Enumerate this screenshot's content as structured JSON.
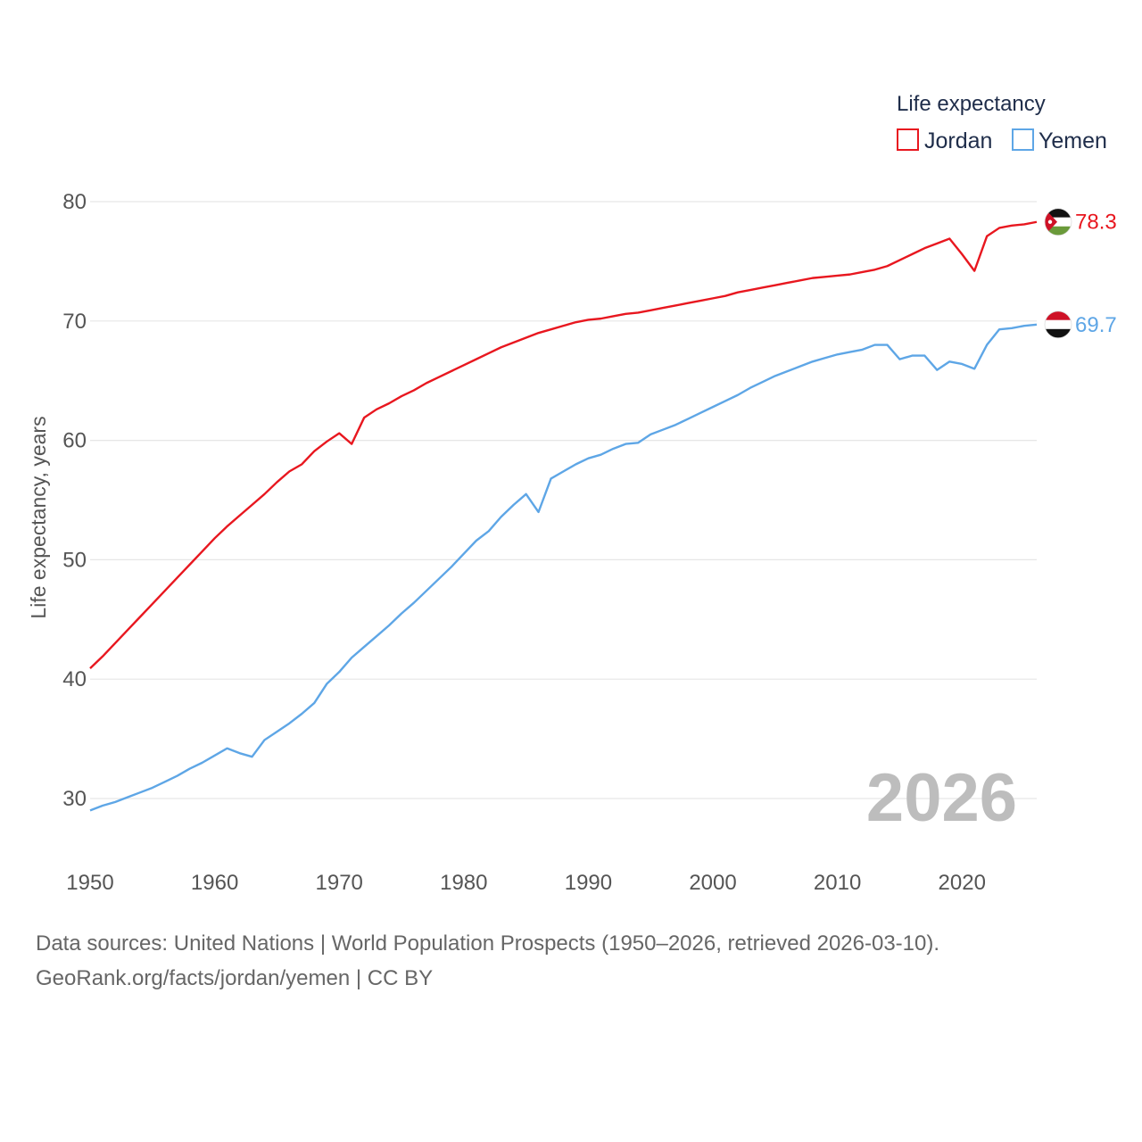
{
  "chart_data": {
    "type": "line",
    "legend_title": "Life expectancy",
    "ylabel": "Life expectancy, years",
    "xlabel": "",
    "xlim": [
      1950,
      2026
    ],
    "ylim": [
      25,
      82
    ],
    "x_ticks": [
      1950,
      1960,
      1970,
      1980,
      1990,
      2000,
      2010,
      2020
    ],
    "y_ticks": [
      30,
      40,
      50,
      60,
      70,
      80
    ],
    "grid": true,
    "legend_position": "top-right",
    "year_label": "2026",
    "series": [
      {
        "name": "Jordan",
        "color": "#e8171f",
        "end_label": "78.3",
        "flag_icon": "jordan-flag-icon",
        "x": [
          1950,
          1951,
          1952,
          1953,
          1954,
          1955,
          1956,
          1957,
          1958,
          1959,
          1960,
          1961,
          1962,
          1963,
          1964,
          1965,
          1966,
          1967,
          1968,
          1969,
          1970,
          1971,
          1972,
          1973,
          1974,
          1975,
          1976,
          1977,
          1978,
          1979,
          1980,
          1981,
          1982,
          1983,
          1984,
          1985,
          1986,
          1987,
          1988,
          1989,
          1990,
          1991,
          1992,
          1993,
          1994,
          1995,
          1996,
          1997,
          1998,
          1999,
          2000,
          2001,
          2002,
          2003,
          2004,
          2005,
          2006,
          2007,
          2008,
          2009,
          2010,
          2011,
          2012,
          2013,
          2014,
          2015,
          2016,
          2017,
          2018,
          2019,
          2020,
          2021,
          2022,
          2023,
          2024,
          2025,
          2026
        ],
        "values": [
          40.9,
          41.9,
          43.0,
          44.1,
          45.2,
          46.3,
          47.4,
          48.5,
          49.6,
          50.7,
          51.8,
          52.8,
          53.7,
          54.6,
          55.5,
          56.5,
          57.4,
          58.0,
          59.1,
          59.9,
          60.6,
          59.7,
          61.9,
          62.6,
          63.1,
          63.7,
          64.2,
          64.8,
          65.3,
          65.8,
          66.3,
          66.8,
          67.3,
          67.8,
          68.2,
          68.6,
          69.0,
          69.3,
          69.6,
          69.9,
          70.1,
          70.2,
          70.4,
          70.6,
          70.7,
          70.9,
          71.1,
          71.3,
          71.5,
          71.7,
          71.9,
          72.1,
          72.4,
          72.6,
          72.8,
          73.0,
          73.2,
          73.4,
          73.6,
          73.7,
          73.8,
          73.9,
          74.1,
          74.3,
          74.6,
          75.1,
          75.6,
          76.1,
          76.5,
          76.9,
          75.6,
          74.2,
          77.1,
          77.8,
          78.0,
          78.1,
          78.3
        ]
      },
      {
        "name": "Yemen",
        "color": "#5ea6e6",
        "end_label": "69.7",
        "flag_icon": "yemen-flag-icon",
        "x": [
          1950,
          1951,
          1952,
          1953,
          1954,
          1955,
          1956,
          1957,
          1958,
          1959,
          1960,
          1961,
          1962,
          1963,
          1964,
          1965,
          1966,
          1967,
          1968,
          1969,
          1970,
          1971,
          1972,
          1973,
          1974,
          1975,
          1976,
          1977,
          1978,
          1979,
          1980,
          1981,
          1982,
          1983,
          1984,
          1985,
          1986,
          1987,
          1988,
          1989,
          1990,
          1991,
          1992,
          1993,
          1994,
          1995,
          1996,
          1997,
          1998,
          1999,
          2000,
          2001,
          2002,
          2003,
          2004,
          2005,
          2006,
          2007,
          2008,
          2009,
          2010,
          2011,
          2012,
          2013,
          2014,
          2015,
          2016,
          2017,
          2018,
          2019,
          2020,
          2021,
          2022,
          2023,
          2024,
          2025,
          2026
        ],
        "values": [
          29.0,
          29.4,
          29.7,
          30.1,
          30.5,
          30.9,
          31.4,
          31.9,
          32.5,
          33.0,
          33.6,
          34.2,
          33.8,
          33.5,
          34.9,
          35.6,
          36.3,
          37.1,
          38.0,
          39.6,
          40.6,
          41.8,
          42.7,
          43.6,
          44.5,
          45.5,
          46.4,
          47.4,
          48.4,
          49.4,
          50.5,
          51.6,
          52.4,
          53.6,
          54.6,
          55.5,
          54.0,
          56.8,
          57.4,
          58.0,
          58.5,
          58.8,
          59.3,
          59.7,
          59.8,
          60.5,
          60.9,
          61.3,
          61.8,
          62.3,
          62.8,
          63.3,
          63.8,
          64.4,
          64.9,
          65.4,
          65.8,
          66.2,
          66.6,
          66.9,
          67.2,
          67.4,
          67.6,
          68.0,
          68.0,
          66.8,
          67.1,
          67.1,
          65.9,
          66.6,
          66.4,
          66.0,
          68.0,
          69.3,
          69.4,
          69.6,
          69.7
        ]
      }
    ]
  },
  "footer": {
    "line1": "Data sources: United Nations | World Population Prospects (1950–2026, retrieved 2026-03-10).",
    "line2": "GeoRank.org/facts/jordan/yemen | CC BY"
  }
}
